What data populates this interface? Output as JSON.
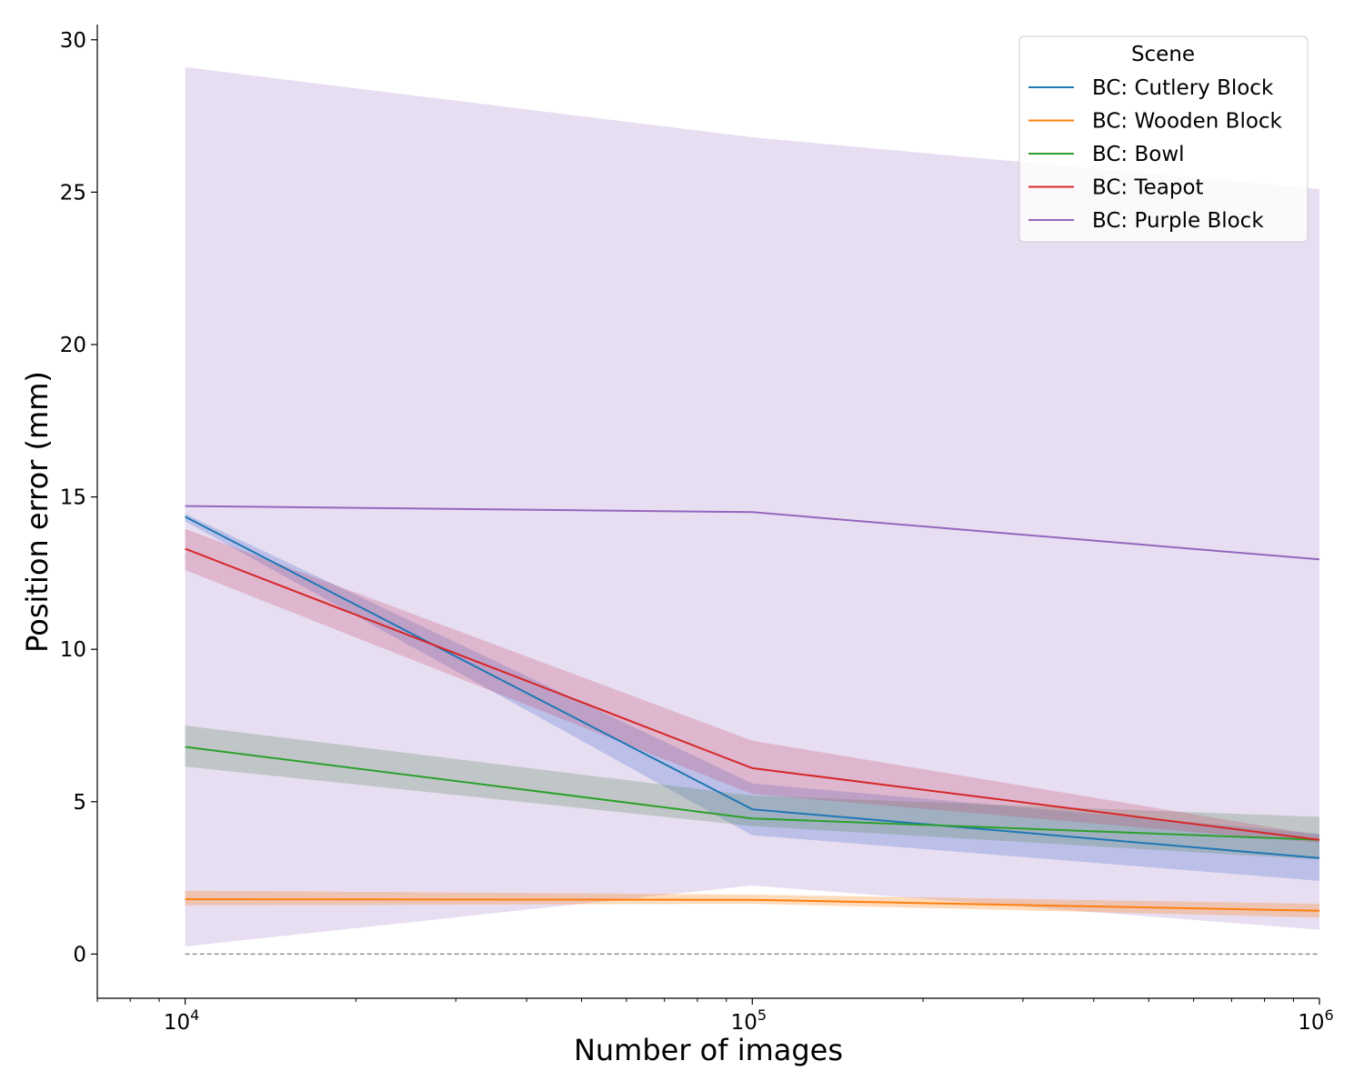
{
  "chart_data": {
    "type": "line",
    "xscale": "log",
    "xlabel": "Number of images",
    "ylabel": "Position error (mm)",
    "xlim": [
      7000,
      1000000
    ],
    "ylim": [
      -1.45,
      30.5
    ],
    "x": [
      10000,
      100000,
      1000000
    ],
    "x_ticks": [
      {
        "value": 10000,
        "base": "10",
        "exp": "4"
      },
      {
        "value": 100000,
        "base": "10",
        "exp": "5"
      },
      {
        "value": 1000000,
        "base": "10",
        "exp": "6"
      }
    ],
    "y_ticks": [
      0,
      5,
      10,
      15,
      20,
      25,
      30
    ],
    "reference_line": {
      "y": 0,
      "style": "dashed",
      "color": "#808080"
    },
    "legend": {
      "title": "Scene",
      "placement": "top-right"
    },
    "series": [
      {
        "name": "BC: Cutlery Block",
        "color": "#1f77b4",
        "band_color": "#4c72d0",
        "values": [
          14.35,
          4.75,
          3.15
        ],
        "lower": [
          14.2,
          3.9,
          2.4
        ],
        "upper": [
          14.45,
          5.6,
          3.95
        ]
      },
      {
        "name": "BC: Wooden Block",
        "color": "#ff7f0e",
        "band_color": "#ff7f0e",
        "values": [
          1.8,
          1.78,
          1.42
        ],
        "lower": [
          1.6,
          1.65,
          1.2
        ],
        "upper": [
          2.08,
          1.95,
          1.65
        ]
      },
      {
        "name": "BC: Bowl",
        "color": "#2ca02c",
        "band_color": "#5a8a5a",
        "values": [
          6.8,
          4.45,
          3.75
        ],
        "lower": [
          6.15,
          4.2,
          3.1
        ],
        "upper": [
          7.5,
          5.2,
          4.5
        ]
      },
      {
        "name": "BC: Teapot",
        "color": "#d62728",
        "band_color": "#c44e72",
        "values": [
          13.3,
          6.1,
          3.75
        ],
        "lower": [
          12.6,
          5.25,
          3.65
        ],
        "upper": [
          13.95,
          7.0,
          3.9
        ]
      },
      {
        "name": "BC: Purple Block",
        "color": "#9467bd",
        "band_color": "#9467bd",
        "values": [
          14.7,
          14.5,
          12.95
        ],
        "lower": [
          0.25,
          2.25,
          0.8
        ],
        "upper": [
          29.1,
          26.8,
          25.1
        ]
      }
    ]
  }
}
